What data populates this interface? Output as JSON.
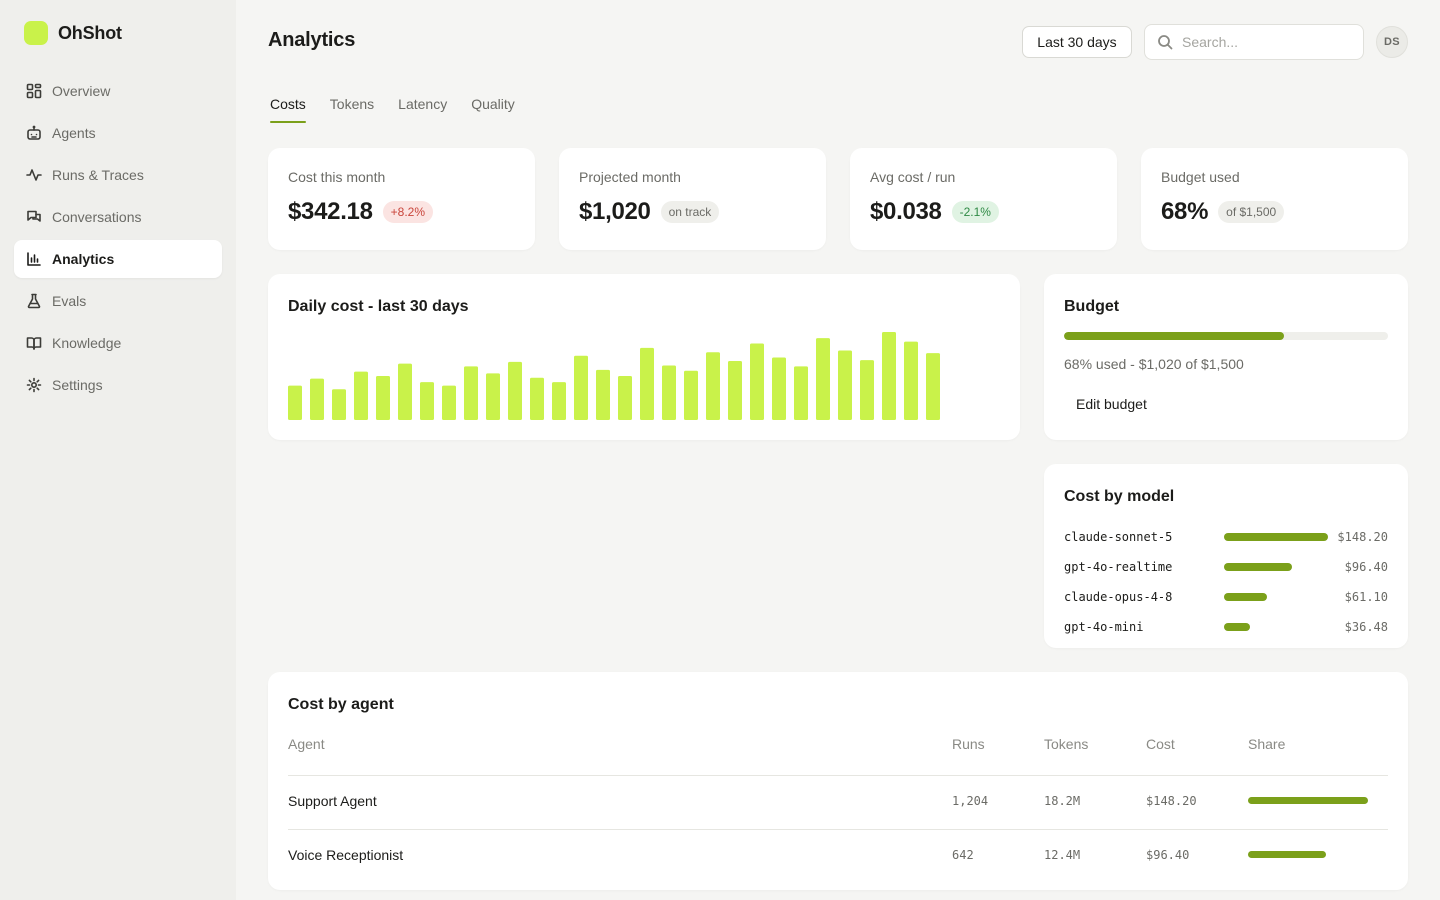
{
  "app": {
    "name": "OhShot"
  },
  "sidebar": {
    "items": [
      {
        "label": "Overview",
        "icon": "grid-icon"
      },
      {
        "label": "Agents",
        "icon": "robot-icon"
      },
      {
        "label": "Runs & Traces",
        "icon": "activity-icon"
      },
      {
        "label": "Conversations",
        "icon": "chat-icon"
      },
      {
        "label": "Analytics",
        "icon": "bar-chart-icon",
        "active": true
      },
      {
        "label": "Evals",
        "icon": "flask-icon"
      },
      {
        "label": "Knowledge",
        "icon": "book-icon"
      },
      {
        "label": "Settings",
        "icon": "gear-icon"
      }
    ]
  },
  "header": {
    "title": "Analytics",
    "range_label": "Last 30 days",
    "search_placeholder": "Search...",
    "avatar_initials": "DS"
  },
  "tabs": [
    {
      "label": "Costs",
      "active": true
    },
    {
      "label": "Tokens"
    },
    {
      "label": "Latency"
    },
    {
      "label": "Quality"
    }
  ],
  "kpis": [
    {
      "label": "Cost this month",
      "value": "$342.18",
      "badge": "+8.2%",
      "badge_tone": "red"
    },
    {
      "label": "Projected month",
      "value": "$1,020",
      "badge": "on track",
      "badge_tone": "gray"
    },
    {
      "label": "Avg cost / run",
      "value": "$0.038",
      "badge": "-2.1%",
      "badge_tone": "green"
    },
    {
      "label": "Budget used",
      "value": "68%",
      "badge": "of $1,500",
      "badge_tone": "gray"
    }
  ],
  "daily": {
    "title": "Daily cost - last 30 days"
  },
  "chart_data": {
    "type": "bar",
    "title": "Daily cost - last 30 days",
    "values": [
      39,
      47,
      35,
      55,
      50,
      64,
      43,
      39,
      61,
      53,
      66,
      48,
      43,
      73,
      57,
      50,
      82,
      62,
      56,
      77,
      67,
      87,
      71,
      61,
      93,
      79,
      68,
      100,
      89,
      76
    ],
    "bar_color": "#c9f24a"
  },
  "budget": {
    "title": "Budget",
    "used_fraction": 0.68,
    "summary": "68% used - $1,020 of $1,500",
    "edit_label": "Edit budget"
  },
  "cost_by_model": {
    "title": "Cost by model",
    "max_cost": 148.2,
    "items": [
      {
        "model": "claude-sonnet-5",
        "cost": 148.2,
        "cost_label": "$148.20"
      },
      {
        "model": "gpt-4o-realtime",
        "cost": 96.4,
        "cost_label": "$96.40"
      },
      {
        "model": "claude-opus-4-8",
        "cost": 61.1,
        "cost_label": "$61.10"
      },
      {
        "model": "gpt-4o-mini",
        "cost": 36.48,
        "cost_label": "$36.48"
      }
    ]
  },
  "cost_by_agent": {
    "title": "Cost by agent",
    "columns": [
      "Agent",
      "Runs",
      "Tokens",
      "Cost",
      "Share"
    ],
    "max_cost": 148.2,
    "rows": [
      {
        "agent": "Support Agent",
        "runs": "1,204",
        "tokens": "18.2M",
        "cost": "$148.20",
        "cost_value": 148.2
      },
      {
        "agent": "Voice Receptionist",
        "runs": "642",
        "tokens": "12.4M",
        "cost": "$96.40",
        "cost_value": 96.4
      }
    ]
  },
  "colors": {
    "accent": "#c9f24a",
    "accent_dark": "#7ba01a"
  }
}
